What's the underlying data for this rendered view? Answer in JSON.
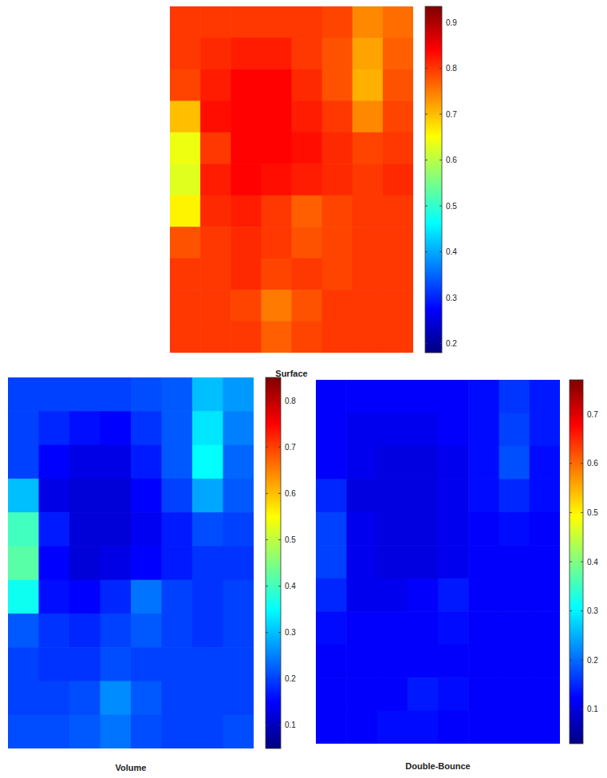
{
  "chart_data": [
    {
      "type": "heatmap",
      "title": "Surface",
      "tick_labels": false,
      "zlim": [
        0.18,
        0.935
      ],
      "zticks": [
        0.2,
        0.3,
        0.4,
        0.5,
        0.6,
        0.7,
        0.8,
        0.9
      ],
      "cells": [
        [
          0.8,
          0.8,
          0.8,
          0.8,
          0.8,
          0.79,
          0.74,
          0.76
        ],
        [
          0.8,
          0.81,
          0.82,
          0.82,
          0.8,
          0.78,
          0.72,
          0.77
        ],
        [
          0.79,
          0.82,
          0.84,
          0.84,
          0.81,
          0.78,
          0.71,
          0.78
        ],
        [
          0.7,
          0.83,
          0.84,
          0.84,
          0.82,
          0.8,
          0.74,
          0.79
        ],
        [
          0.64,
          0.8,
          0.84,
          0.84,
          0.83,
          0.81,
          0.79,
          0.8
        ],
        [
          0.63,
          0.82,
          0.84,
          0.83,
          0.82,
          0.81,
          0.8,
          0.81
        ],
        [
          0.66,
          0.81,
          0.82,
          0.8,
          0.77,
          0.79,
          0.8,
          0.8
        ],
        [
          0.78,
          0.8,
          0.81,
          0.8,
          0.78,
          0.79,
          0.8,
          0.8
        ],
        [
          0.8,
          0.8,
          0.81,
          0.79,
          0.8,
          0.79,
          0.8,
          0.8
        ],
        [
          0.8,
          0.8,
          0.79,
          0.75,
          0.78,
          0.8,
          0.8,
          0.8
        ],
        [
          0.8,
          0.8,
          0.8,
          0.77,
          0.79,
          0.8,
          0.8,
          0.8
        ]
      ]
    },
    {
      "type": "heatmap",
      "title": "Volume",
      "tick_labels": false,
      "zlim": [
        0.05,
        0.85
      ],
      "zticks": [
        0.1,
        0.2,
        0.3,
        0.4,
        0.5,
        0.6,
        0.7,
        0.8
      ],
      "cells": [
        [
          0.2,
          0.2,
          0.2,
          0.2,
          0.21,
          0.22,
          0.3,
          0.27
        ],
        [
          0.2,
          0.18,
          0.16,
          0.15,
          0.19,
          0.22,
          0.33,
          0.25
        ],
        [
          0.2,
          0.15,
          0.13,
          0.13,
          0.17,
          0.22,
          0.35,
          0.23
        ],
        [
          0.3,
          0.13,
          0.12,
          0.12,
          0.15,
          0.2,
          0.28,
          0.22
        ],
        [
          0.4,
          0.17,
          0.12,
          0.12,
          0.14,
          0.17,
          0.21,
          0.2
        ],
        [
          0.42,
          0.15,
          0.12,
          0.13,
          0.15,
          0.17,
          0.19,
          0.19
        ],
        [
          0.36,
          0.16,
          0.15,
          0.18,
          0.24,
          0.2,
          0.19,
          0.2
        ],
        [
          0.22,
          0.19,
          0.18,
          0.2,
          0.22,
          0.2,
          0.19,
          0.2
        ],
        [
          0.2,
          0.19,
          0.19,
          0.21,
          0.2,
          0.2,
          0.2,
          0.2
        ],
        [
          0.2,
          0.2,
          0.21,
          0.26,
          0.22,
          0.2,
          0.2,
          0.2
        ],
        [
          0.21,
          0.21,
          0.22,
          0.24,
          0.21,
          0.2,
          0.2,
          0.21
        ]
      ]
    },
    {
      "type": "heatmap",
      "title": "Double-Bounce",
      "tick_labels": false,
      "zlim": [
        0.03,
        0.77
      ],
      "zticks": [
        0.1,
        0.2,
        0.3,
        0.4,
        0.5,
        0.6,
        0.7
      ],
      "cells": [
        [
          0.12,
          0.12,
          0.12,
          0.12,
          0.12,
          0.13,
          0.16,
          0.14
        ],
        [
          0.12,
          0.11,
          0.11,
          0.11,
          0.12,
          0.13,
          0.17,
          0.14
        ],
        [
          0.12,
          0.11,
          0.1,
          0.1,
          0.11,
          0.13,
          0.18,
          0.13
        ],
        [
          0.15,
          0.1,
          0.1,
          0.1,
          0.11,
          0.13,
          0.15,
          0.13
        ],
        [
          0.17,
          0.11,
          0.1,
          0.1,
          0.11,
          0.12,
          0.13,
          0.12
        ],
        [
          0.17,
          0.11,
          0.1,
          0.1,
          0.11,
          0.12,
          0.12,
          0.12
        ],
        [
          0.15,
          0.11,
          0.11,
          0.12,
          0.14,
          0.12,
          0.12,
          0.12
        ],
        [
          0.13,
          0.12,
          0.12,
          0.12,
          0.13,
          0.12,
          0.12,
          0.12
        ],
        [
          0.12,
          0.12,
          0.12,
          0.12,
          0.12,
          0.12,
          0.12,
          0.12
        ],
        [
          0.12,
          0.12,
          0.12,
          0.14,
          0.13,
          0.12,
          0.12,
          0.12
        ],
        [
          0.12,
          0.12,
          0.13,
          0.13,
          0.12,
          0.12,
          0.12,
          0.12
        ]
      ]
    }
  ]
}
